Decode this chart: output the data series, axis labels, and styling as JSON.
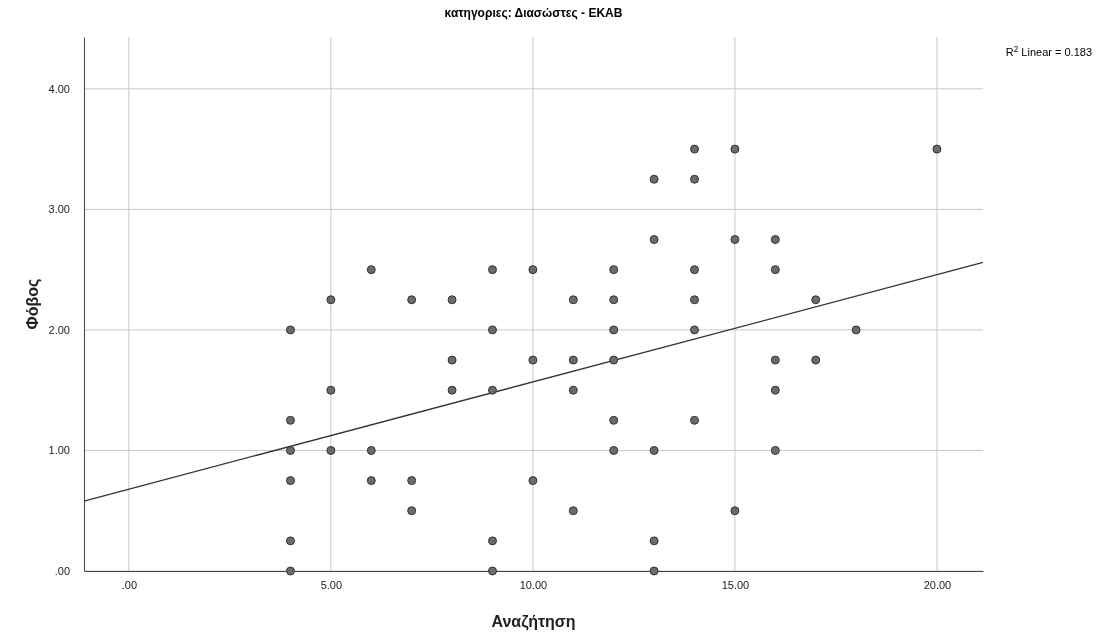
{
  "chart_data": {
    "type": "scatter",
    "title": "κατηγοριες: Διασώστες - ΕΚΑΒ",
    "xlabel": "Αναζήτηση",
    "ylabel": "Φόβος",
    "annotations": [
      "R$^{2}$ Linear = 0.183"
    ],
    "xlim": [
      -1.11,
      21.14
    ],
    "ylim": [
      0,
      4.43
    ],
    "xticks": [
      {
        "value": 0,
        "label": ".00"
      },
      {
        "value": 5,
        "label": "5.00"
      },
      {
        "value": 10,
        "label": "10.00"
      },
      {
        "value": 15,
        "label": "15.00"
      },
      {
        "value": 20,
        "label": "20.00"
      }
    ],
    "yticks": [
      {
        "value": 0,
        "label": ".00"
      },
      {
        "value": 1,
        "label": "1.00"
      },
      {
        "value": 2,
        "label": "2.00"
      },
      {
        "value": 3,
        "label": "3.00"
      },
      {
        "value": 4,
        "label": "4.00"
      }
    ],
    "grid": true,
    "series": [
      {
        "marker": "circle",
        "color": "#6b6b6b",
        "x": [
          4,
          4,
          4,
          4,
          4,
          4,
          5,
          5,
          5,
          6,
          6,
          6,
          7,
          7,
          7,
          8,
          8,
          8,
          9,
          9,
          9,
          9,
          9,
          10,
          10,
          10,
          11,
          11,
          11,
          11,
          12,
          12,
          12,
          12,
          12,
          12,
          13,
          13,
          13,
          13,
          13,
          14,
          14,
          14,
          14,
          14,
          14,
          15,
          15,
          15,
          16,
          16,
          16,
          16,
          16,
          17,
          17,
          18,
          20
        ],
        "values": [
          2,
          1.25,
          1,
          0.75,
          0.25,
          0,
          2.25,
          1.5,
          1,
          2.5,
          1,
          0.75,
          2.25,
          0.75,
          0.5,
          2.25,
          1.75,
          1.5,
          2.5,
          2,
          1.5,
          0.25,
          0,
          2.5,
          1.75,
          0.75,
          2.25,
          1.75,
          1.5,
          0.5,
          2.5,
          2.25,
          2,
          1.75,
          1.25,
          1,
          3.25,
          2.75,
          1,
          0.25,
          0,
          3.5,
          3.25,
          2.5,
          2.25,
          2,
          1.25,
          3.5,
          2.75,
          0.5,
          2.75,
          2.5,
          1.75,
          1.5,
          1,
          2.25,
          1.75,
          2,
          3.5
        ]
      },
      {
        "type": "line",
        "color": "#333333",
        "line_style": "solid",
        "x": [
          -1.11,
          21.14
        ],
        "values": [
          0.58,
          2.56
        ]
      }
    ]
  }
}
